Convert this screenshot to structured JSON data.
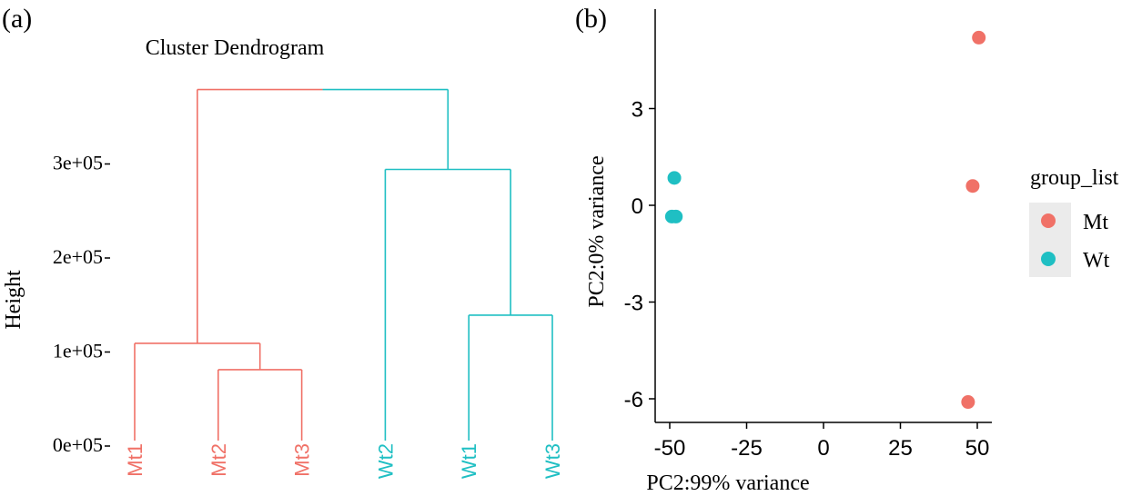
{
  "colors": {
    "mt": "#f07167",
    "wt": "#1fbfc3",
    "axis": "#000000",
    "legend_bg": "#ebebeb"
  },
  "chart_data": [
    {
      "type": "dendrogram",
      "panel_label": "(a)",
      "title": "Cluster Dendrogram",
      "ylabel": "Height",
      "ylim": [
        0,
        380000
      ],
      "y_ticks": [
        {
          "value": 0,
          "label": "0e+05"
        },
        {
          "value": 100000,
          "label": "1e+05"
        },
        {
          "value": 200000,
          "label": "2e+05"
        },
        {
          "value": 300000,
          "label": "3e+05"
        }
      ],
      "leaves": [
        {
          "label": "Mt1",
          "group": "Mt"
        },
        {
          "label": "Mt2",
          "group": "Mt"
        },
        {
          "label": "Mt3",
          "group": "Mt"
        },
        {
          "label": "Wt2",
          "group": "Wt"
        },
        {
          "label": "Wt1",
          "group": "Wt"
        },
        {
          "label": "Wt3",
          "group": "Wt"
        }
      ],
      "merges": [
        {
          "id": "m1",
          "children": [
            "Mt2",
            "Mt3"
          ],
          "height": 87000,
          "group": "Mt"
        },
        {
          "id": "m2",
          "children": [
            "Mt1",
            "m1"
          ],
          "height": 115000,
          "group": "Mt"
        },
        {
          "id": "w1",
          "children": [
            "Wt1",
            "Wt3"
          ],
          "height": 145000,
          "group": "Wt"
        },
        {
          "id": "w2",
          "children": [
            "Wt2",
            "w1"
          ],
          "height": 300000,
          "group": "Wt"
        },
        {
          "id": "root",
          "children": [
            "m2",
            "w2"
          ],
          "height": 385000,
          "group": "mixed"
        }
      ]
    },
    {
      "type": "scatter",
      "panel_label": "(b)",
      "xlabel": "PC2:99% variance",
      "ylabel": "PC2:0% variance",
      "xlim": [
        -52,
        54
      ],
      "ylim": [
        -6.8,
        5.8
      ],
      "x_ticks": [
        {
          "value": -50,
          "label": "-50"
        },
        {
          "value": -25,
          "label": "-25"
        },
        {
          "value": 0,
          "label": "0"
        },
        {
          "value": 25,
          "label": "25"
        },
        {
          "value": 50,
          "label": "50"
        }
      ],
      "y_ticks": [
        {
          "value": -6,
          "label": "-6"
        },
        {
          "value": -3,
          "label": "-3"
        },
        {
          "value": 0,
          "label": "0"
        },
        {
          "value": 3,
          "label": "3"
        }
      ],
      "series": [
        {
          "name": "Mt",
          "points": [
            {
              "x": 50.5,
              "y": 5.2
            },
            {
              "x": 48.5,
              "y": 0.6
            },
            {
              "x": 47.0,
              "y": -6.1
            }
          ]
        },
        {
          "name": "Wt",
          "points": [
            {
              "x": -48.5,
              "y": 0.85
            },
            {
              "x": -49.3,
              "y": -0.35
            },
            {
              "x": -48.0,
              "y": -0.35
            }
          ]
        }
      ],
      "legend": {
        "title": "group_list",
        "position": "right",
        "items": [
          {
            "label": "Mt",
            "group": "Mt"
          },
          {
            "label": "Wt",
            "group": "Wt"
          }
        ]
      }
    }
  ]
}
